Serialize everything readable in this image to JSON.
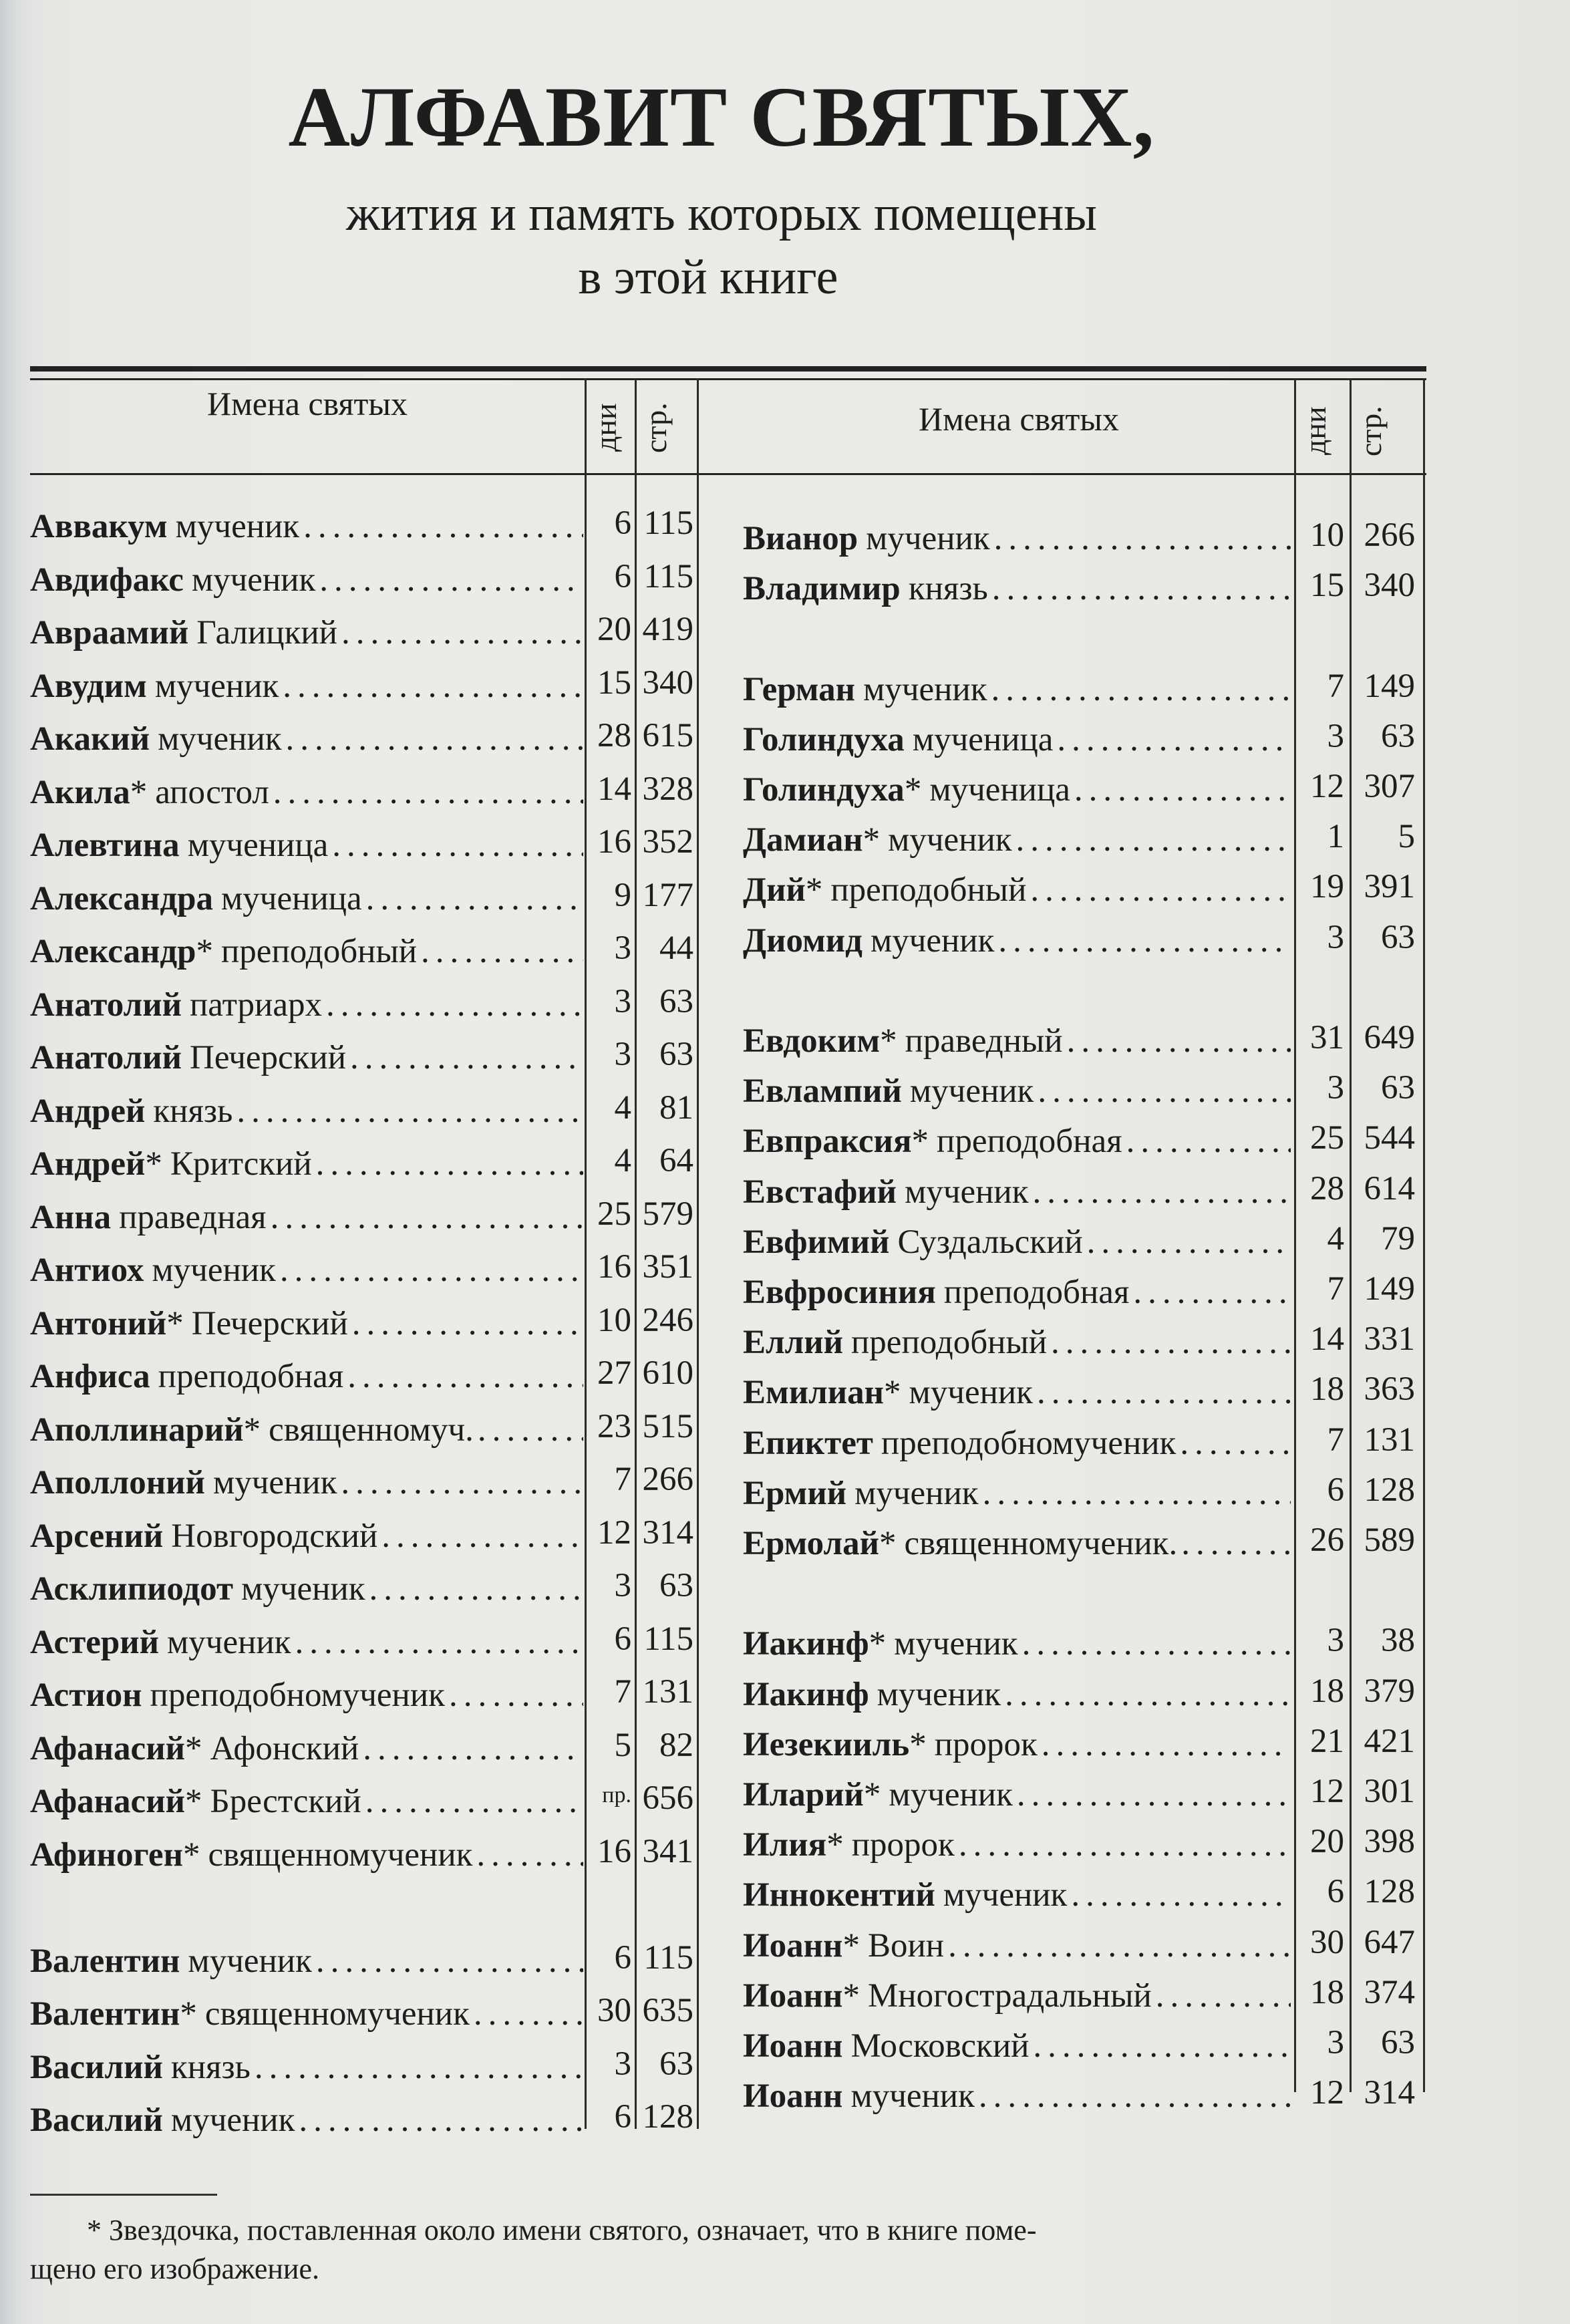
{
  "title": "АЛФАВИТ СВЯТЫХ,",
  "subtitle_line1": "жития и память которых помещены",
  "subtitle_line2": "в этой книге",
  "table_header": {
    "names": "Имена святых",
    "days": "дни",
    "page": "стр."
  },
  "columns": [
    {
      "rows": [
        {
          "name": "Аввакум",
          "star": "",
          "desc": "мученик",
          "day": "6",
          "page": "115"
        },
        {
          "name": "Авдифакс",
          "star": "",
          "desc": "мученик",
          "day": "6",
          "page": "115"
        },
        {
          "name": "Авраамий",
          "star": "",
          "desc": "Галицкий",
          "day": "20",
          "page": "419"
        },
        {
          "name": "Авудим",
          "star": "",
          "desc": "мученик",
          "day": "15",
          "page": "340"
        },
        {
          "name": "Акакий",
          "star": "",
          "desc": "мученик",
          "day": "28",
          "page": "615"
        },
        {
          "name": "Акила",
          "star": "*",
          "desc": "апостол",
          "day": "14",
          "page": "328"
        },
        {
          "name": "Алевтина",
          "star": "",
          "desc": "мученица",
          "day": "16",
          "page": "352"
        },
        {
          "name": "Александра",
          "star": "",
          "desc": "мученица",
          "day": "9",
          "page": "177"
        },
        {
          "name": "Александр",
          "star": "*",
          "desc": "преподобный",
          "day": "3",
          "page": "44"
        },
        {
          "name": "Анатолий",
          "star": "",
          "desc": "патриарх",
          "day": "3",
          "page": "63"
        },
        {
          "name": "Анатолий",
          "star": "",
          "desc": "Печерский",
          "day": "3",
          "page": "63"
        },
        {
          "name": "Андрей",
          "star": "",
          "desc": "князь",
          "day": "4",
          "page": "81"
        },
        {
          "name": "Андрей",
          "star": "*",
          "desc": "Критский",
          "day": "4",
          "page": "64"
        },
        {
          "name": "Анна",
          "star": "",
          "desc": "праведная",
          "day": "25",
          "page": "579"
        },
        {
          "name": "Антиох",
          "star": "",
          "desc": "мученик",
          "day": "16",
          "page": "351"
        },
        {
          "name": "Антоний",
          "star": "*",
          "desc": "Печерский",
          "day": "10",
          "page": "246"
        },
        {
          "name": "Анфиса",
          "star": "",
          "desc": "преподобная",
          "day": "27",
          "page": "610"
        },
        {
          "name": "Аполлинарий",
          "star": "*",
          "desc": "священномуч.",
          "day": "23",
          "page": "515"
        },
        {
          "name": "Аполлоний",
          "star": "",
          "desc": "мученик",
          "day": "7",
          "page": "266"
        },
        {
          "name": "Арсений",
          "star": "",
          "desc": "Новгородский",
          "day": "12",
          "page": "314"
        },
        {
          "name": "Асклипиодот",
          "star": "",
          "desc": "мученик",
          "day": "3",
          "page": "63"
        },
        {
          "name": "Астерий",
          "star": "",
          "desc": "мученик",
          "day": "6",
          "page": "115"
        },
        {
          "name": "Астион",
          "star": "",
          "desc": "преподобномученик",
          "day": "7",
          "page": "131"
        },
        {
          "name": "Афанасий",
          "star": "*",
          "desc": "Афонский",
          "day": "5",
          "page": "82"
        },
        {
          "name": "Афанасий",
          "star": "*",
          "desc": "Брестский",
          "day": "пр.",
          "page": "656"
        },
        {
          "name": "Афиноген",
          "star": "*",
          "desc": "священномученик",
          "day": "16",
          "page": "341"
        },
        {
          "blank": true
        },
        {
          "name": "Валентин",
          "star": "",
          "desc": "мученик",
          "day": "6",
          "page": "115"
        },
        {
          "name": "Валентин",
          "star": "*",
          "desc": "священномученик",
          "day": "30",
          "page": "635"
        },
        {
          "name": "Василий",
          "star": "",
          "desc": "князь",
          "day": "3",
          "page": "63"
        },
        {
          "name": "Василий",
          "star": "",
          "desc": "мученик",
          "day": "6",
          "page": "128"
        }
      ]
    },
    {
      "rows": [
        {
          "name": "Вианор",
          "star": "",
          "desc": "мученик",
          "day": "10",
          "page": "266"
        },
        {
          "name": "Владимир",
          "star": "",
          "desc": "князь",
          "day": "15",
          "page": "340"
        },
        {
          "blank": true
        },
        {
          "name": "Герман",
          "star": "",
          "desc": "мученик",
          "day": "7",
          "page": "149"
        },
        {
          "name": "Голиндуха",
          "star": "",
          "desc": "мученица",
          "day": "3",
          "page": "63"
        },
        {
          "name": "Голиндуха",
          "star": "*",
          "desc": "мученица",
          "day": "12",
          "page": "307"
        },
        {
          "name": "Дамиан",
          "star": "*",
          "desc": "мученик",
          "day": "1",
          "page": "5"
        },
        {
          "name": "Дий",
          "star": "*",
          "desc": "преподобный",
          "day": "19",
          "page": "391"
        },
        {
          "name": "Диомид",
          "star": "",
          "desc": "мученик",
          "day": "3",
          "page": "63"
        },
        {
          "blank": true
        },
        {
          "name": "Евдоким",
          "star": "*",
          "desc": "праведный",
          "day": "31",
          "page": "649"
        },
        {
          "name": "Евлампий",
          "star": "",
          "desc": "мученик",
          "day": "3",
          "page": "63"
        },
        {
          "name": "Евпраксия",
          "star": "*",
          "desc": "преподобная",
          "day": "25",
          "page": "544"
        },
        {
          "name": "Евстафий",
          "star": "",
          "desc": "мученик",
          "day": "28",
          "page": "614"
        },
        {
          "name": "Евфимий",
          "star": "",
          "desc": "Суздальский",
          "day": "4",
          "page": "79"
        },
        {
          "name": "Евфросиния",
          "star": "",
          "desc": "преподобная",
          "day": "7",
          "page": "149"
        },
        {
          "name": "Еллий",
          "star": "",
          "desc": "преподобный",
          "day": "14",
          "page": "331"
        },
        {
          "name": "Емилиан",
          "star": "*",
          "desc": "мученик",
          "day": "18",
          "page": "363"
        },
        {
          "name": "Епиктет",
          "star": "",
          "desc": "преподобномученик",
          "day": "7",
          "page": "131"
        },
        {
          "name": "Ермий",
          "star": "",
          "desc": "мученик",
          "day": "6",
          "page": "128"
        },
        {
          "name": "Ермолай",
          "star": "*",
          "desc": "священномученик.",
          "day": "26",
          "page": "589"
        },
        {
          "blank": true
        },
        {
          "name": "Иакинф",
          "star": "*",
          "desc": "мученик",
          "day": "3",
          "page": "38"
        },
        {
          "name": "Иакинф",
          "star": "",
          "desc": "мученик",
          "day": "18",
          "page": "379"
        },
        {
          "name": "Иезекииль",
          "star": "*",
          "desc": "пророк",
          "day": "21",
          "page": "421"
        },
        {
          "name": "Иларий",
          "star": "*",
          "desc": "мученик",
          "day": "12",
          "page": "301"
        },
        {
          "name": "Илия",
          "star": "*",
          "desc": "пророк",
          "day": "20",
          "page": "398"
        },
        {
          "name": "Иннокентий",
          "star": "",
          "desc": "мученик",
          "day": "6",
          "page": "128"
        },
        {
          "name": "Иоанн",
          "star": "*",
          "desc": "Воин",
          "day": "30",
          "page": "647"
        },
        {
          "name": "Иоанн",
          "star": "*",
          "desc": "Многострадальный",
          "day": "18",
          "page": "374"
        },
        {
          "name": "Иоанн",
          "star": "",
          "desc": "Московский",
          "day": "3",
          "page": "63"
        },
        {
          "name": "Иоанн",
          "star": "",
          "desc": "мученик",
          "day": "12",
          "page": "314"
        }
      ]
    }
  ],
  "footnote_line1": "* Звездочка, поставленная около имени святого, означает, что в книге поме-",
  "footnote_line2": "щено его изображение."
}
